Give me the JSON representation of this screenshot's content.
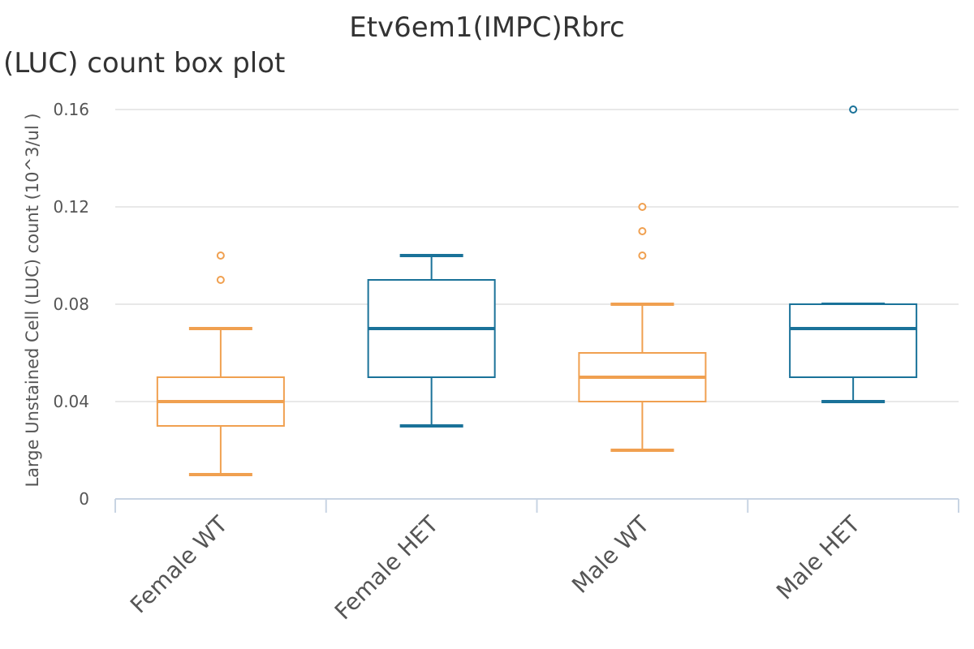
{
  "chart_data": {
    "type": "box",
    "title": "Etv6em1(IMPC)Rbrc",
    "subtitle": "(LUC) count box plot",
    "ylabel": "Large Unstained Cell (LUC) count (10^3/ul )",
    "xlabel": "",
    "ylim": [
      0,
      0.16
    ],
    "yticks": [
      "0",
      "0.04",
      "0.08",
      "0.12",
      "0.16"
    ],
    "ytick_values": [
      0,
      0.04,
      0.08,
      0.12,
      0.16
    ],
    "grid": true,
    "categories": [
      "Female WT",
      "Female HET",
      "Male WT",
      "Male HET"
    ],
    "boxes": [
      {
        "category": "Female WT",
        "min": 0.01,
        "q1": 0.03,
        "median": 0.04,
        "q3": 0.05,
        "max": 0.07,
        "outliers": [
          0.09,
          0.1
        ],
        "color": "#f0a050"
      },
      {
        "category": "Female HET",
        "min": 0.03,
        "q1": 0.05,
        "median": 0.07,
        "q3": 0.09,
        "max": 0.1,
        "outliers": [],
        "color": "#1a7299"
      },
      {
        "category": "Male WT",
        "min": 0.02,
        "q1": 0.04,
        "median": 0.05,
        "q3": 0.06,
        "max": 0.08,
        "outliers": [
          0.1,
          0.11,
          0.12
        ],
        "color": "#f0a050"
      },
      {
        "category": "Male HET",
        "min": 0.04,
        "q1": 0.05,
        "median": 0.07,
        "q3": 0.08,
        "max": 0.08,
        "outliers": [
          0.16
        ],
        "color": "#1a7299"
      }
    ],
    "colors": {
      "wt": "#f0a050",
      "het": "#1a7299",
      "grid": "#e0e0e0",
      "axis": "#c8d4e3",
      "text": "#555555",
      "title": "#333333"
    }
  }
}
